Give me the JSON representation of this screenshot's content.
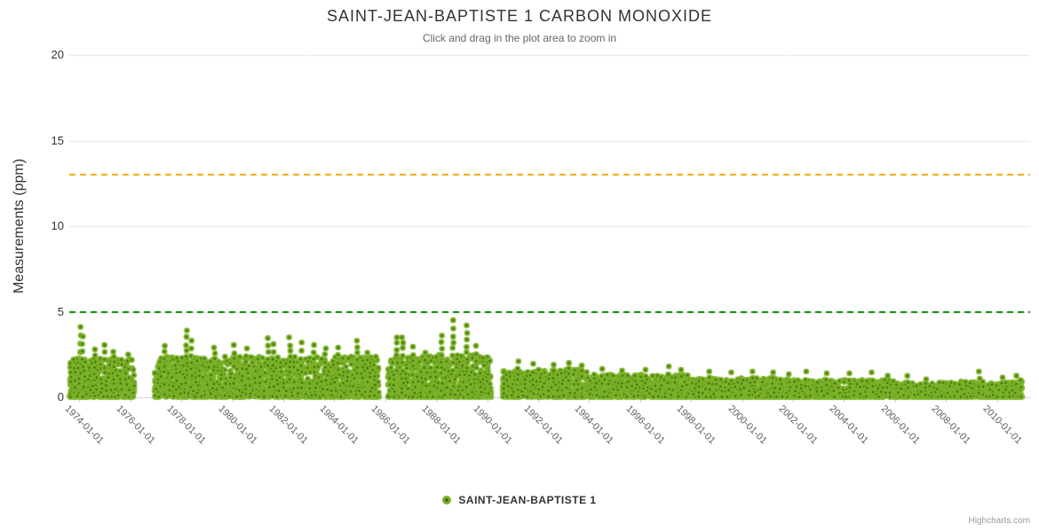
{
  "credits": {
    "text": "Highcharts.com"
  },
  "chart_data": {
    "type": "scatter",
    "title": "SAINT-JEAN-BAPTISTE 1 CARBON MONOXIDE",
    "subtitle": "Click and drag in the plot area to zoom in",
    "xlabel": "",
    "ylabel": "Measurements (ppm)",
    "ylim": [
      0,
      20
    ],
    "y_ticks": [
      0,
      5,
      10,
      15,
      20
    ],
    "x_range": [
      1973.6,
      2011.3
    ],
    "x_tick_years": [
      1974,
      1976,
      1978,
      1980,
      1982,
      1984,
      1986,
      1988,
      1990,
      1992,
      1994,
      1996,
      1998,
      2000,
      2002,
      2004,
      2006,
      2008,
      2010
    ],
    "x_tick_labels": [
      "1974-01-01",
      "1976-01-01",
      "1978-01-01",
      "1980-01-01",
      "1982-01-01",
      "1984-01-01",
      "1986-01-01",
      "1988-01-01",
      "1990-01-01",
      "1992-01-01",
      "1994-01-01",
      "1996-01-01",
      "1998-01-01",
      "2000-01-01",
      "2002-01-01",
      "2004-01-01",
      "2006-01-01",
      "2008-01-01",
      "2010-01-01"
    ],
    "grid": "horizontal",
    "legend_position": "bottom-center",
    "series_name": "SAINT-JEAN-BAPTISTE 1",
    "colors": {
      "marker_ring": "#7CB228",
      "marker_core": "#3E6E0D",
      "grid": "#E6E6E6",
      "axis_line": "#C0D0E0",
      "threshold_high": "#F0A600",
      "threshold_low": "#008000"
    },
    "marker": {
      "radius": 3.3,
      "core_radius": 1.3
    },
    "plot_lines": [
      {
        "value": 13,
        "color": "#F0A600",
        "dash": [
          7,
          5
        ],
        "width": 2
      },
      {
        "value": 5,
        "color": "#008000",
        "dash": [
          7,
          5
        ],
        "width": 2
      }
    ],
    "random_seed": 11,
    "data_segments": [
      {
        "from": 1973.62,
        "to": 1976.15,
        "points_per_year": 205,
        "typical_max": 2.25,
        "shape": 2.0,
        "outliers": [
          [
            1974.05,
            4.1
          ],
          [
            1974.12,
            3.55
          ],
          [
            1974.6,
            2.8
          ],
          [
            1975.0,
            3.05
          ],
          [
            1975.35,
            2.65
          ],
          [
            1975.9,
            2.5
          ]
        ]
      },
      {
        "from": 1976.95,
        "to": 1985.75,
        "points_per_year": 205,
        "typical_max": 2.35,
        "shape": 2.0,
        "outliers": [
          [
            1977.35,
            3.0
          ],
          [
            1978.2,
            3.9
          ],
          [
            1978.38,
            3.3
          ],
          [
            1979.3,
            2.9
          ],
          [
            1980.05,
            3.05
          ],
          [
            1980.55,
            2.85
          ],
          [
            1981.4,
            3.45
          ],
          [
            1981.6,
            3.1
          ],
          [
            1982.25,
            3.5
          ],
          [
            1982.7,
            3.2
          ],
          [
            1983.2,
            3.05
          ],
          [
            1983.65,
            2.85
          ],
          [
            1984.15,
            2.9
          ],
          [
            1984.9,
            3.3
          ],
          [
            1985.3,
            2.6
          ]
        ]
      },
      {
        "from": 1986.1,
        "to": 1990.15,
        "points_per_year": 210,
        "typical_max": 2.45,
        "shape": 2.0,
        "outliers": [
          [
            1986.45,
            3.5
          ],
          [
            1986.68,
            3.5
          ],
          [
            1987.1,
            2.95
          ],
          [
            1987.55,
            2.6
          ],
          [
            1988.2,
            3.6
          ],
          [
            1988.65,
            4.5
          ],
          [
            1989.2,
            4.2
          ],
          [
            1989.55,
            3.0
          ]
        ]
      },
      {
        "from": 1990.6,
        "to": 1994.0,
        "points_per_year": 190,
        "typical_max": 1.6,
        "shape": 1.9,
        "outliers": [
          [
            1991.2,
            2.1
          ],
          [
            1991.8,
            1.95
          ],
          [
            1992.6,
            1.9
          ],
          [
            1993.2,
            2.0
          ],
          [
            1993.7,
            1.85
          ]
        ]
      },
      {
        "from": 1994.0,
        "to": 1998.0,
        "points_per_year": 185,
        "typical_max": 1.3,
        "shape": 2.1,
        "outliers": [
          [
            1994.5,
            1.65
          ],
          [
            1995.3,
            1.55
          ],
          [
            1996.2,
            1.6
          ],
          [
            1997.1,
            1.8
          ],
          [
            1997.6,
            1.6
          ]
        ]
      },
      {
        "from": 1998.0,
        "to": 2002.0,
        "points_per_year": 180,
        "typical_max": 1.1,
        "shape": 2.2,
        "outliers": [
          [
            1998.7,
            1.5
          ],
          [
            1999.6,
            1.45
          ],
          [
            2000.4,
            1.5
          ],
          [
            2001.2,
            1.45
          ],
          [
            2001.85,
            1.35
          ]
        ]
      },
      {
        "from": 2002.0,
        "to": 2006.0,
        "points_per_year": 175,
        "typical_max": 1.0,
        "shape": 2.2,
        "outliers": [
          [
            2002.5,
            1.5
          ],
          [
            2003.3,
            1.4
          ],
          [
            2004.2,
            1.4
          ],
          [
            2005.1,
            1.45
          ],
          [
            2005.7,
            1.25
          ]
        ]
      },
      {
        "from": 2006.0,
        "to": 2008.3,
        "points_per_year": 155,
        "typical_max": 0.85,
        "shape": 2.3,
        "outliers": [
          [
            2006.5,
            1.25
          ],
          [
            2007.2,
            1.05
          ]
        ]
      },
      {
        "from": 2008.3,
        "to": 2011.0,
        "points_per_year": 165,
        "typical_max": 0.9,
        "shape": 2.3,
        "outliers": [
          [
            2009.3,
            1.5
          ],
          [
            2010.2,
            1.15
          ],
          [
            2010.75,
            1.25
          ],
          [
            2010.95,
            1.0
          ]
        ]
      }
    ]
  }
}
